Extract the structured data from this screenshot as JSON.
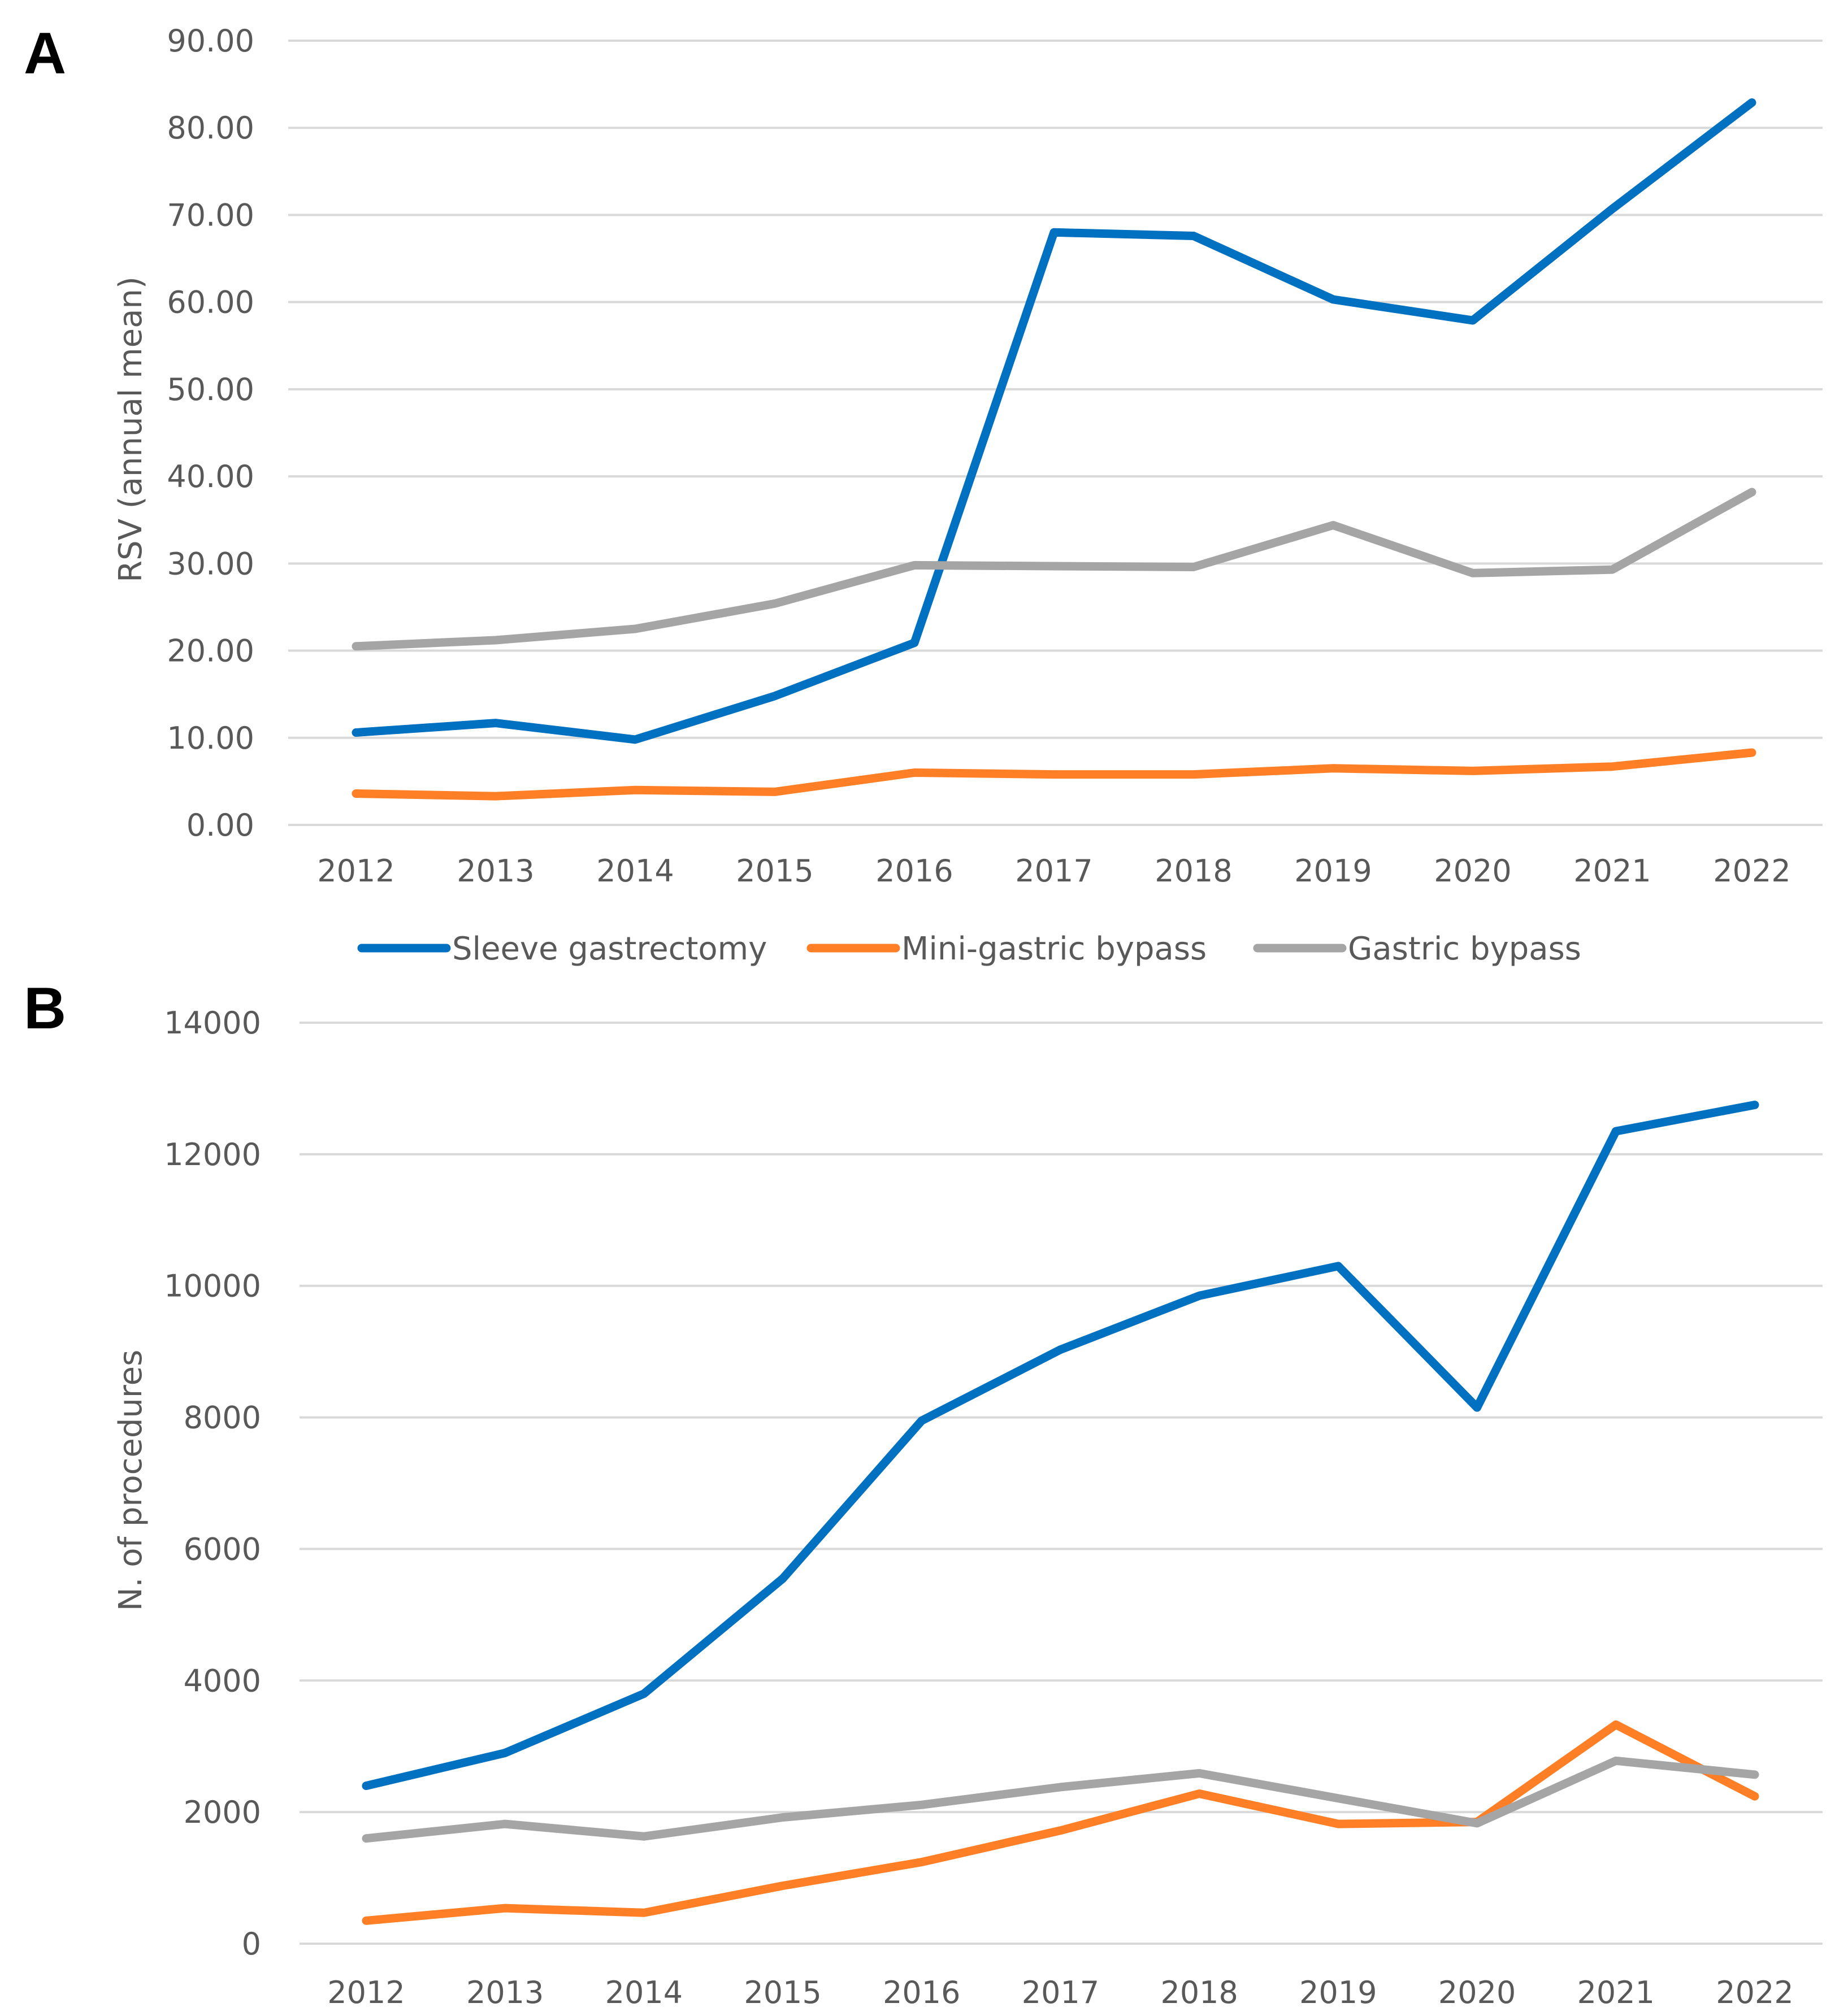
{
  "figure": {
    "panel_a_letter": "A",
    "panel_b_letter": "B"
  },
  "legend": [
    {
      "name": "Sleeve gastrectomy",
      "color": "#0070c0"
    },
    {
      "name": "Mini-gastric bypass",
      "color": "#ff7f27"
    },
    {
      "name": "Gastric bypass",
      "color": "#a5a5a5"
    }
  ],
  "chart_data": [
    {
      "type": "line",
      "panel": "A",
      "title": "",
      "xlabel": "",
      "ylabel": "RSV (annual mean)",
      "categories": [
        "2012",
        "2013",
        "2014",
        "2015",
        "2016",
        "2017",
        "2018",
        "2019",
        "2020",
        "2021",
        "2022"
      ],
      "ylim": [
        0,
        90
      ],
      "y_ticks": [
        "0.00",
        "10.00",
        "20.00",
        "30.00",
        "40.00",
        "50.00",
        "60.00",
        "70.00",
        "80.00",
        "90.00"
      ],
      "grid": true,
      "legend_position": "bottom",
      "series": [
        {
          "name": "Sleeve gastrectomy",
          "color": "#0070c0",
          "values": [
            10.6,
            11.7,
            9.8,
            14.8,
            20.9,
            68.0,
            67.6,
            60.3,
            57.9,
            70.7,
            82.9
          ]
        },
        {
          "name": "Mini-gastric bypass",
          "color": "#ff7f27",
          "values": [
            3.6,
            3.3,
            4.0,
            3.8,
            6.0,
            5.8,
            5.8,
            6.5,
            6.2,
            6.7,
            8.3
          ]
        },
        {
          "name": "Gastric bypass",
          "color": "#a5a5a5",
          "values": [
            20.5,
            21.2,
            22.5,
            25.4,
            29.8,
            29.7,
            29.6,
            34.4,
            28.9,
            29.3,
            38.2
          ]
        }
      ]
    },
    {
      "type": "line",
      "panel": "B",
      "title": "",
      "xlabel": "",
      "ylabel": "N. of procedures",
      "categories": [
        "2012",
        "2013",
        "2014",
        "2015",
        "2016",
        "2017",
        "2018",
        "2019",
        "2020",
        "2021",
        "2022"
      ],
      "ylim": [
        0,
        14000
      ],
      "y_ticks": [
        "0",
        "2000",
        "4000",
        "6000",
        "8000",
        "10000",
        "12000",
        "14000"
      ],
      "grid": true,
      "legend_position": "none",
      "series": [
        {
          "name": "Sleeve gastrectomy",
          "color": "#0070c0",
          "values": [
            2400,
            2900,
            3800,
            5550,
            7950,
            9030,
            9850,
            10300,
            8150,
            12350,
            12750
          ]
        },
        {
          "name": "Mini-gastric bypass",
          "color": "#ff7f27",
          "values": [
            350,
            540,
            470,
            880,
            1240,
            1720,
            2280,
            1820,
            1850,
            3330,
            2240
          ]
        },
        {
          "name": "Gastric bypass",
          "color": "#a5a5a5",
          "values": [
            1600,
            1820,
            1630,
            1920,
            2110,
            2380,
            2590,
            2210,
            1830,
            2780,
            2570
          ]
        }
      ]
    }
  ]
}
